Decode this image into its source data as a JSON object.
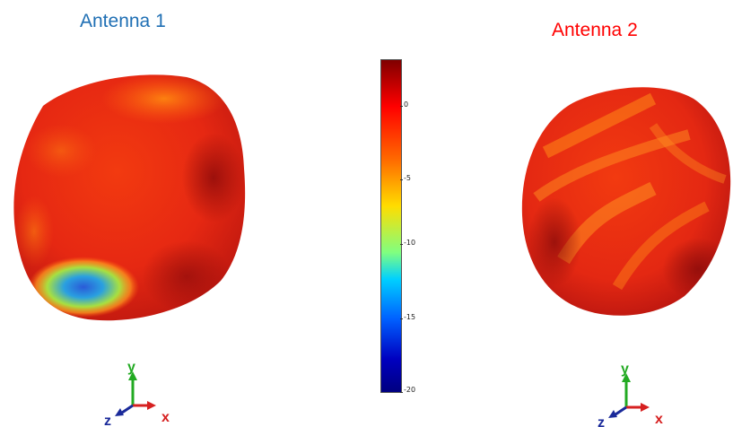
{
  "panels": [
    {
      "title": "Antenna 1",
      "title_color": "#1f6fb4"
    },
    {
      "title": "Antenna 2",
      "title_color": "#ff0000"
    }
  ],
  "colorbar": {
    "ticks": [
      "0",
      "-5",
      "-10",
      "-15",
      "-20"
    ],
    "colormap": "jet",
    "range": [
      -20,
      2
    ]
  },
  "axes_triad": {
    "x_label": "x",
    "y_label": "y",
    "z_label": "z",
    "x_color": "#d62020",
    "y_color": "#22aa22",
    "z_color": "#1a2a9a"
  }
}
